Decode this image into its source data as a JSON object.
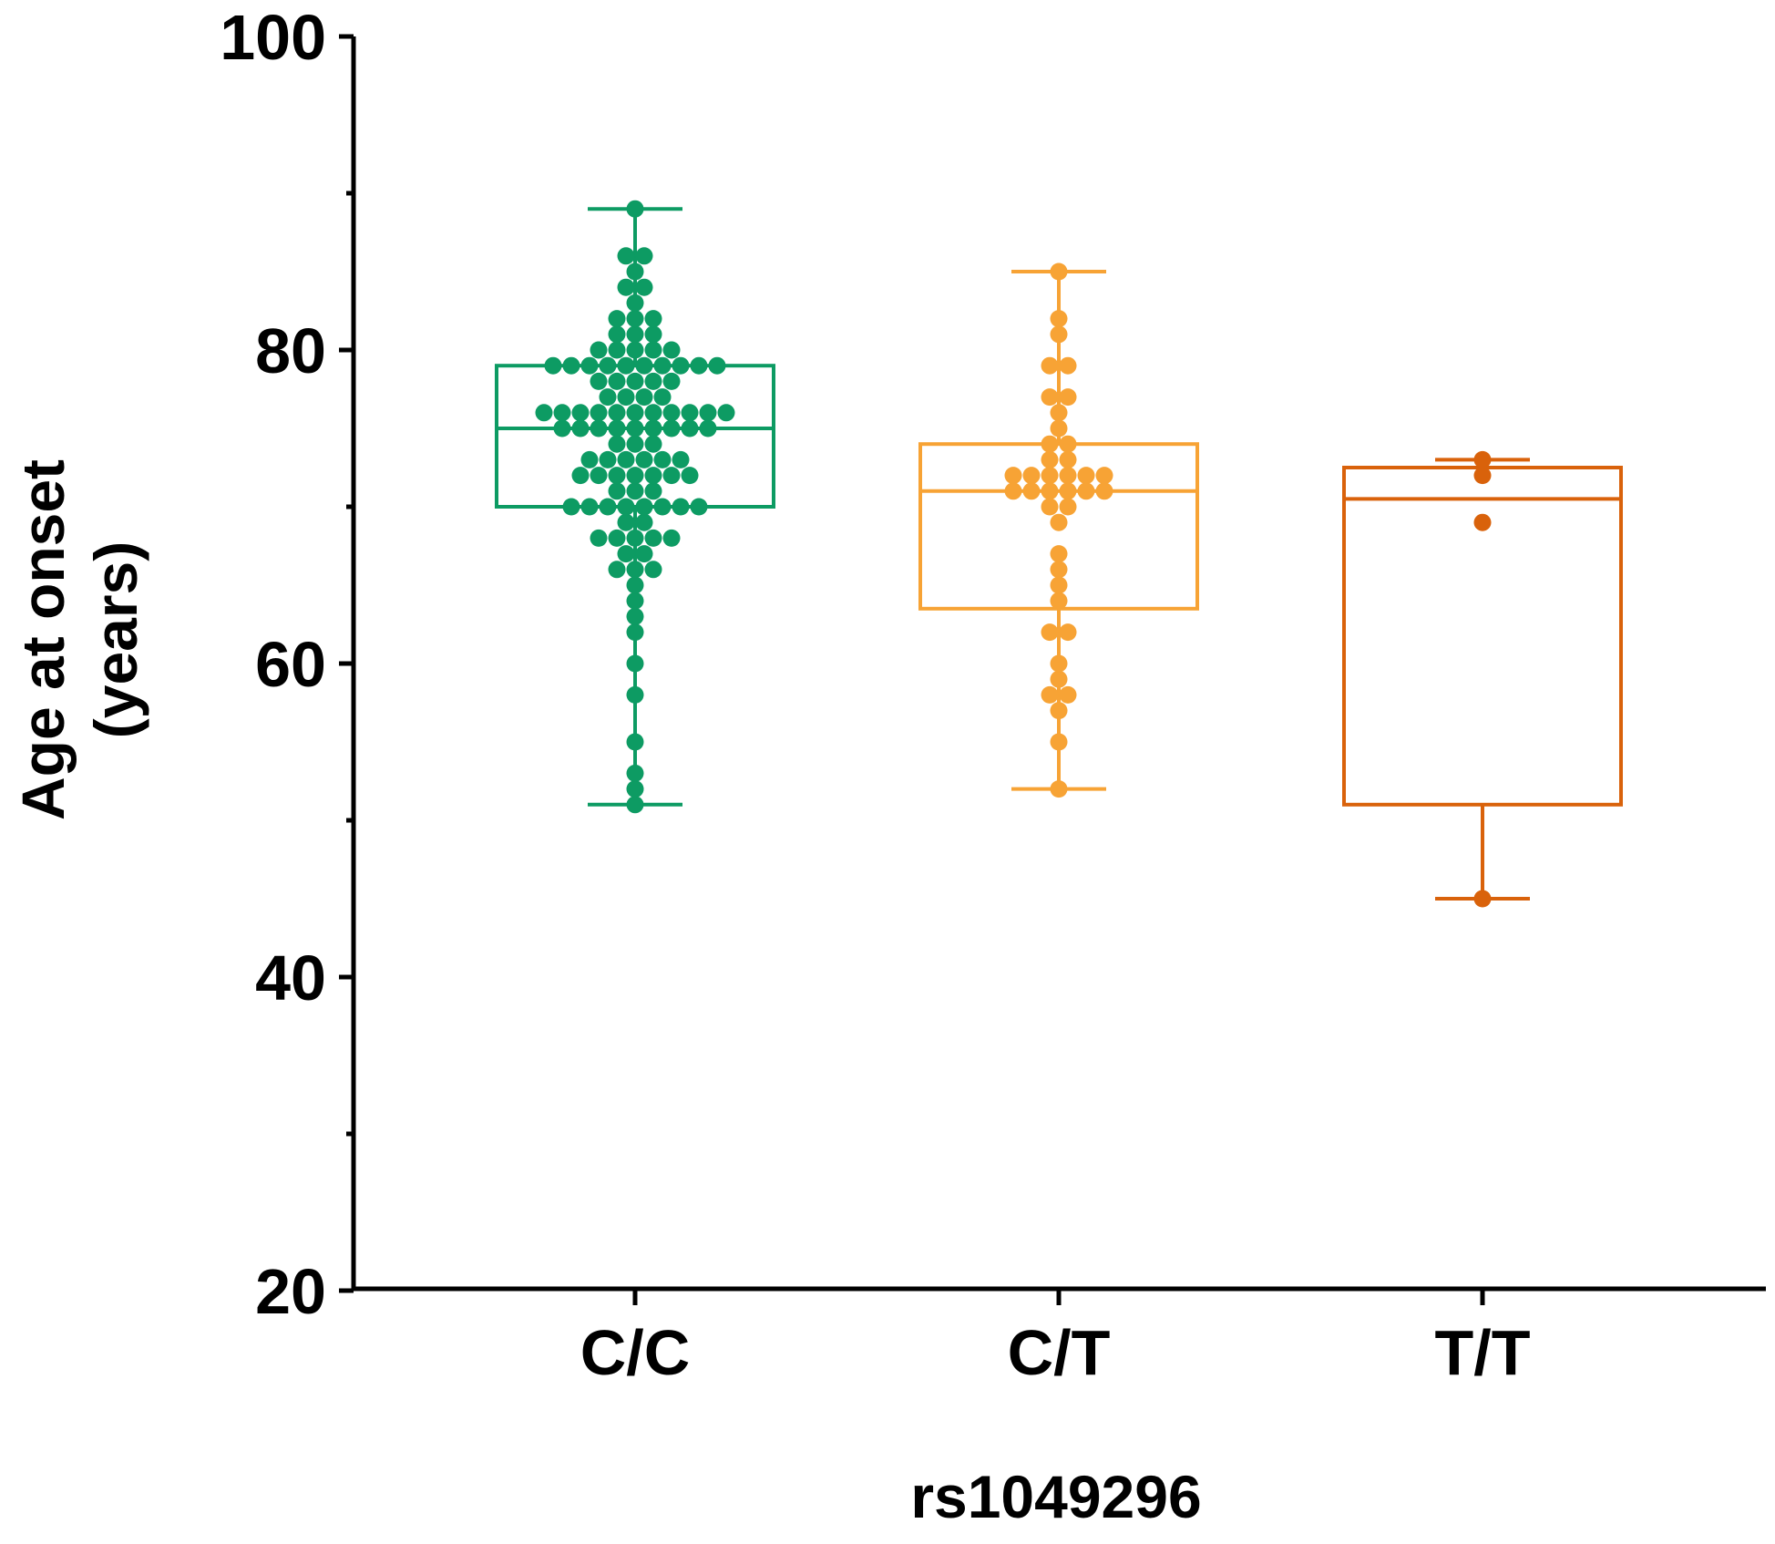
{
  "chart_data": {
    "type": "box",
    "title": "",
    "xlabel": "rs1049296",
    "ylabel": [
      "Age at onset",
      "(years)"
    ],
    "ylim": [
      20,
      100
    ],
    "yticks": [
      20,
      40,
      60,
      80,
      100
    ],
    "yticks_minor": [
      30,
      50,
      70,
      90
    ],
    "categories": [
      "C/C",
      "C/T",
      "T/T"
    ],
    "series": [
      {
        "name": "C/C",
        "color": "#0d9b63",
        "box": {
          "min": 51,
          "q1": 70,
          "median": 75,
          "q3": 79,
          "max": 89
        },
        "points": [
          89,
          86,
          86,
          85,
          84,
          84,
          83,
          82,
          82,
          82,
          81,
          81,
          81,
          80,
          80,
          80,
          80,
          80,
          79,
          79,
          79,
          79,
          79,
          79,
          79,
          79,
          79,
          79,
          78,
          78,
          78,
          78,
          78,
          77,
          77,
          77,
          77,
          76,
          76,
          76,
          76,
          76,
          76,
          76,
          76,
          76,
          76,
          76,
          75,
          75,
          75,
          75,
          75,
          75,
          75,
          75,
          75,
          74,
          74,
          74,
          73,
          73,
          73,
          73,
          73,
          73,
          72,
          72,
          72,
          72,
          72,
          72,
          72,
          71,
          71,
          71,
          70,
          70,
          70,
          70,
          70,
          70,
          70,
          70,
          69,
          69,
          68,
          68,
          68,
          68,
          68,
          67,
          67,
          66,
          66,
          66,
          65,
          64,
          63,
          62,
          60,
          58,
          55,
          53,
          52,
          51
        ]
      },
      {
        "name": "C/T",
        "color": "#f7a335",
        "box": {
          "min": 52,
          "q1": 63.5,
          "median": 71,
          "q3": 74,
          "max": 85
        },
        "points": [
          85,
          82,
          81,
          79,
          79,
          77,
          77,
          76,
          75,
          74,
          74,
          73,
          73,
          72,
          72,
          72,
          72,
          72,
          72,
          71,
          71,
          71,
          71,
          71,
          71,
          70,
          70,
          69,
          67,
          66,
          65,
          64,
          62,
          62,
          60,
          59,
          58,
          58,
          57,
          55,
          52
        ]
      },
      {
        "name": "T/T",
        "color": "#d9620b",
        "box": {
          "min": 45,
          "q1": 51,
          "median": 70.5,
          "q3": 72.5,
          "max": 73
        },
        "points": [
          73,
          72,
          69,
          45
        ]
      }
    ]
  }
}
